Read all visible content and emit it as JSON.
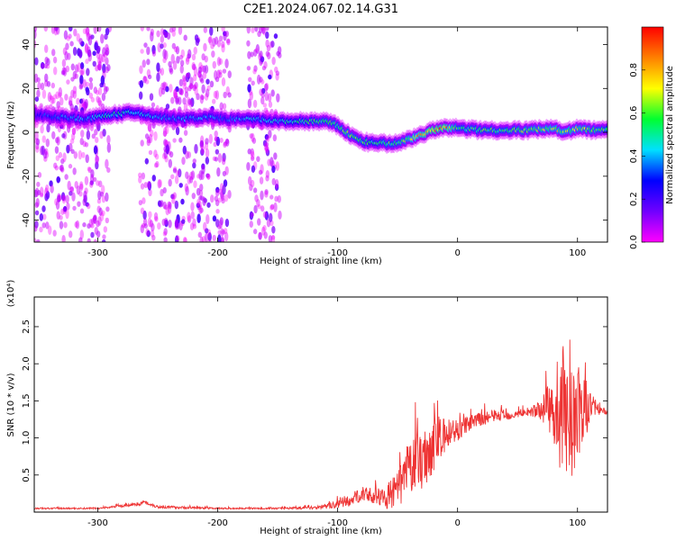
{
  "title": "C2E1.2024.067.02.14.G31",
  "chart_data": [
    {
      "type": "heatmap",
      "xlabel": "Height of straight line (km)",
      "ylabel": "Frequency (Hz)",
      "xlim": [
        -353,
        125
      ],
      "ylim": [
        -50,
        48
      ],
      "x_ticks": [
        -300,
        -200,
        -100,
        0,
        100
      ],
      "y_ticks": [
        -40,
        -20,
        0,
        20,
        40
      ],
      "colorbar": {
        "label": "Normalized spectral amplitude",
        "range": [
          0.0,
          1.0
        ],
        "ticks": [
          "0.0",
          "0.2",
          "0.4",
          "0.6",
          "0.8"
        ],
        "colormap": [
          "#ff00ff",
          "#7000ff",
          "#0000ff",
          "#00e0ff",
          "#00ff30",
          "#ffff00",
          "#ff8000",
          "#ff0000"
        ]
      },
      "ridge": {
        "x": [
          -350,
          -330,
          -310,
          -290,
          -270,
          -250,
          -230,
          -210,
          -190,
          -170,
          -150,
          -130,
          -110,
          -100,
          -90,
          -80,
          -70,
          -60,
          -50,
          -40,
          -30,
          -20,
          -10,
          0,
          20,
          40,
          60,
          80,
          90,
          100,
          110,
          125
        ],
        "frequency": [
          8,
          7,
          6,
          8,
          9,
          7,
          6,
          7,
          6,
          6,
          5,
          5,
          5,
          3,
          -1,
          -4,
          -5,
          -5,
          -5,
          -3,
          -1,
          1,
          2,
          2,
          1,
          1,
          1,
          2,
          0,
          2,
          1,
          1
        ],
        "amplitude": [
          0.3,
          0.4,
          0.4,
          0.55,
          0.5,
          0.4,
          0.4,
          0.4,
          0.35,
          0.45,
          0.45,
          0.55,
          0.6,
          0.6,
          0.65,
          0.6,
          0.55,
          0.6,
          0.6,
          0.7,
          0.85,
          0.9,
          0.9,
          0.6,
          0.6,
          0.6,
          0.65,
          0.7,
          0.7,
          0.7,
          0.65,
          0.6
        ]
      },
      "scatter_bands": [
        [
          -353,
          -290
        ],
        [
          -265,
          -190
        ],
        [
          -175,
          -148
        ]
      ]
    },
    {
      "type": "line",
      "xlabel": "Height of straight line (km)",
      "ylabel": "SNR (10 * v/v)",
      "y_multiplier": "(x10⁴)",
      "xlim": [
        -353,
        125
      ],
      "ylim": [
        0,
        2.9
      ],
      "x_ticks": [
        -300,
        -200,
        -100,
        0,
        100
      ],
      "y_ticks": [
        0.5,
        1.0,
        1.5,
        2.0,
        2.5
      ],
      "color": "#ee3333",
      "series": [
        {
          "x": [
            -353,
            -300,
            -270,
            -260,
            -250,
            -200,
            -150,
            -120,
            -100,
            -90,
            -80,
            -70,
            -60,
            -50,
            -45,
            -40,
            -35,
            -30,
            -25,
            -20,
            -15,
            -10,
            -5,
            0,
            10,
            20,
            30,
            40,
            50,
            60,
            70,
            75,
            80,
            85,
            90,
            95,
            100,
            105,
            110,
            115,
            120,
            125
          ],
          "y": [
            0.05,
            0.05,
            0.1,
            0.13,
            0.07,
            0.05,
            0.05,
            0.06,
            0.1,
            0.15,
            0.25,
            0.2,
            0.2,
            0.3,
            0.45,
            0.6,
            0.65,
            0.7,
            0.8,
            0.9,
            1.0,
            1.0,
            1.1,
            1.1,
            1.2,
            1.25,
            1.3,
            1.3,
            1.32,
            1.35,
            1.38,
            1.4,
            1.4,
            1.2,
            1.3,
            1.2,
            1.3,
            1.35,
            1.45,
            1.4,
            1.35,
            1.35
          ],
          "noise": [
            0.01,
            0.01,
            0.02,
            0.03,
            0.02,
            0.01,
            0.01,
            0.02,
            0.05,
            0.08,
            0.1,
            0.1,
            0.15,
            0.25,
            0.3,
            0.4,
            0.35,
            0.4,
            0.4,
            0.35,
            0.3,
            0.25,
            0.2,
            0.15,
            0.1,
            0.1,
            0.08,
            0.06,
            0.05,
            0.05,
            0.15,
            0.3,
            0.45,
            0.7,
            0.8,
            0.8,
            0.7,
            0.5,
            0.25,
            0.1,
            0.05,
            0.03
          ]
        }
      ]
    }
  ]
}
